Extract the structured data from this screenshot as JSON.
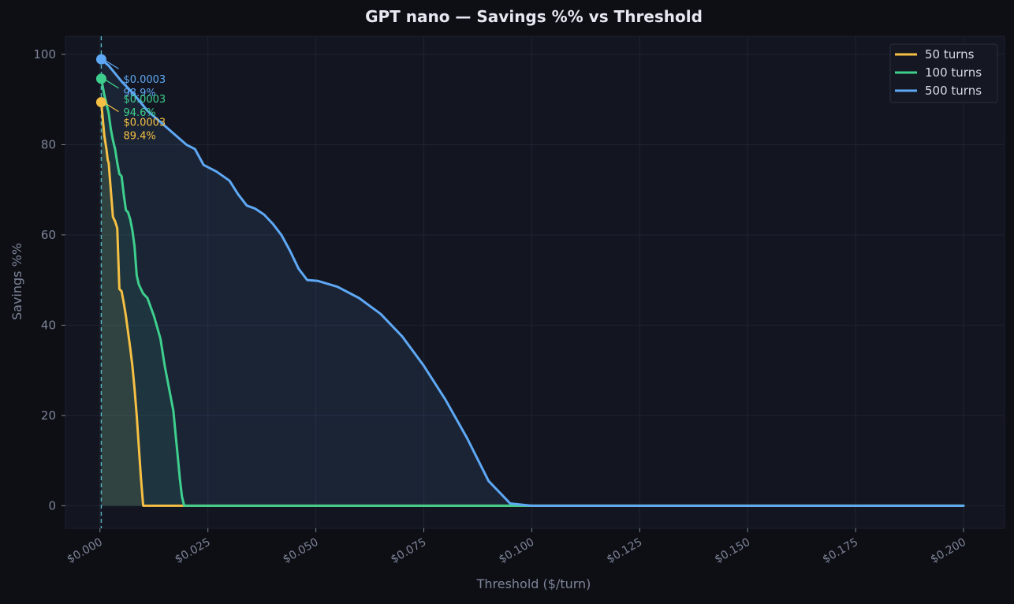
{
  "chart_data": {
    "type": "line",
    "title": "GPT nano — Savings %% vs Threshold",
    "xlabel": "Threshold ($/turn)",
    "ylabel": "Savings %%",
    "xlim": [
      -0.008,
      0.2095
    ],
    "ylim": [
      -5,
      104
    ],
    "xticks": [
      0,
      0.025,
      0.05,
      0.075,
      0.1,
      0.125,
      0.15,
      0.175,
      0.2
    ],
    "xtick_labels": [
      "$0.000",
      "$0.025",
      "$0.050",
      "$0.075",
      "$0.100",
      "$0.125",
      "$0.150",
      "$0.175",
      "$0.200"
    ],
    "yticks": [
      0,
      20,
      40,
      60,
      80,
      100
    ],
    "ytick_labels": [
      "0",
      "20",
      "40",
      "60",
      "80",
      "100"
    ],
    "grid": true,
    "legend_position": "top-right",
    "vline_x": 0.0003,
    "colors": {
      "background": "#0d0f14",
      "plot_bg": "#131620",
      "grid": "#1f2433",
      "axis_text": "#7d8499",
      "title": "#e6e9f2",
      "vline": "#56b6c2",
      "legend_text": "#d8dce6"
    },
    "series": [
      {
        "name": "50 turns",
        "color": "#f5c043",
        "x": [
          0.0003,
          0.001,
          0.0015,
          0.0018,
          0.002,
          0.0025,
          0.003,
          0.0035,
          0.004,
          0.0045,
          0.005,
          0.0055,
          0.006,
          0.0065,
          0.007,
          0.0075,
          0.008,
          0.0085,
          0.009,
          0.0095,
          0.01,
          0.2
        ],
        "y": [
          89.4,
          82,
          79,
          76.5,
          76,
          70,
          64,
          63,
          61.5,
          48,
          47.5,
          45,
          42,
          38.5,
          35,
          31,
          26,
          20,
          13,
          6,
          0,
          0
        ]
      },
      {
        "name": "100 turns",
        "color": "#3ecf8e",
        "x": [
          0.0003,
          0.001,
          0.002,
          0.0025,
          0.003,
          0.0035,
          0.004,
          0.0045,
          0.005,
          0.0055,
          0.006,
          0.0065,
          0.007,
          0.0075,
          0.008,
          0.0085,
          0.009,
          0.0095,
          0.01,
          0.011,
          0.0125,
          0.014,
          0.015,
          0.016,
          0.017,
          0.0175,
          0.018,
          0.0185,
          0.019,
          0.0195,
          0.2
        ],
        "y": [
          94.6,
          91,
          87,
          83.5,
          81,
          79,
          76,
          73.5,
          73,
          69,
          65.5,
          65,
          63.5,
          61,
          57.5,
          51,
          49,
          48,
          47,
          46,
          42,
          37,
          31,
          26,
          21,
          16,
          11,
          6,
          2,
          0,
          0
        ]
      },
      {
        "name": "500 turns",
        "color": "#5ea8f5",
        "x": [
          0.0003,
          0.002,
          0.005,
          0.008,
          0.011,
          0.014,
          0.017,
          0.02,
          0.022,
          0.024,
          0.027,
          0.03,
          0.032,
          0.034,
          0.036,
          0.038,
          0.04,
          0.042,
          0.044,
          0.046,
          0.048,
          0.0505,
          0.055,
          0.06,
          0.065,
          0.07,
          0.075,
          0.08,
          0.085,
          0.09,
          0.095,
          0.098,
          0.1,
          0.101,
          0.2
        ],
        "y": [
          98.9,
          97.5,
          94,
          91,
          87.5,
          85,
          82.5,
          80,
          79,
          75.5,
          74,
          72,
          69,
          66.5,
          65.8,
          64.5,
          62.5,
          60,
          56.5,
          52.5,
          50,
          49.8,
          48.5,
          46,
          42.5,
          37.5,
          31,
          23.5,
          15,
          5.5,
          0.5,
          0.2,
          0,
          0,
          0
        ]
      }
    ],
    "annotations": [
      {
        "series": "500 turns",
        "x": 0.0003,
        "y": 98.9,
        "line1": "$0.0003",
        "line2": "98.9%",
        "color": "#5ea8f5"
      },
      {
        "series": "100 turns",
        "x": 0.0003,
        "y": 94.6,
        "line1": "$0.0003",
        "line2": "94.6%",
        "color": "#3ecf8e"
      },
      {
        "series": "50 turns",
        "x": 0.0003,
        "y": 89.4,
        "line1": "$0.0003",
        "line2": "89.4%",
        "color": "#f5c043"
      }
    ]
  }
}
